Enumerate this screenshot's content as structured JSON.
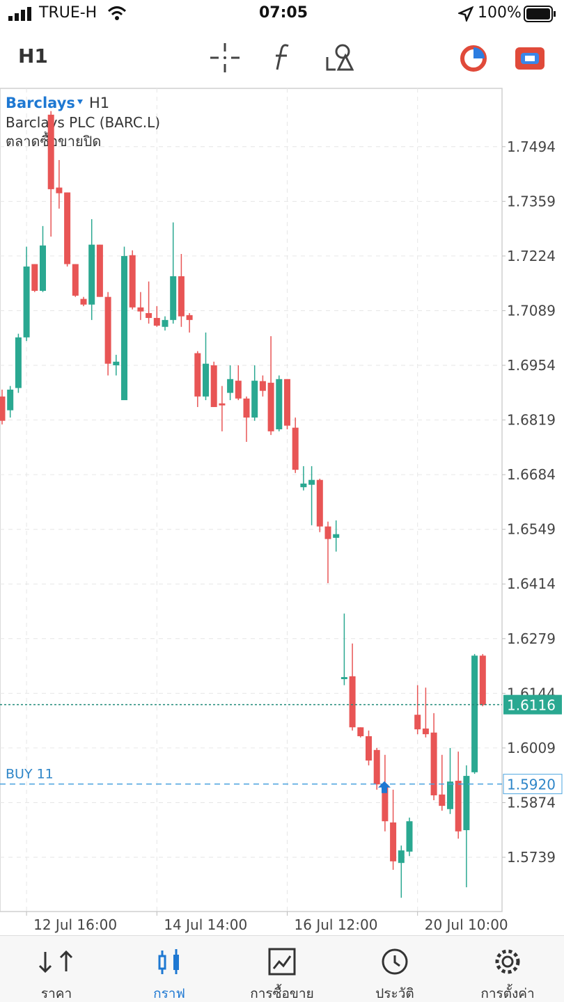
{
  "status_bar": {
    "carrier": "TRUE-H",
    "time": "07:05",
    "battery": "100%"
  },
  "toolbar": {
    "timeframe": "H1"
  },
  "chart_data": {
    "type": "candlestick",
    "symbol": "Barclays",
    "timeframe": "H1",
    "description": "Barclays PLC (BARC.L)",
    "market_status": "ตลาดซื้อขายปิด",
    "categories": [
      null,
      null,
      null,
      "12 Jul 16:00",
      null,
      null,
      null,
      null,
      null,
      null,
      null,
      null,
      null,
      null,
      null,
      null,
      null,
      null,
      null,
      "14 Jul 14:00",
      null,
      null,
      null,
      null,
      null,
      null,
      null,
      null,
      null,
      null,
      null,
      null,
      null,
      null,
      null,
      "16 Jul 12:00",
      null,
      null,
      null,
      null,
      null,
      null,
      null,
      null,
      null,
      null,
      null,
      null,
      null,
      null,
      null,
      "20 Jul 10:00",
      null,
      null,
      null,
      null,
      null,
      null,
      null,
      null
    ],
    "open": [
      1.6877,
      1.6843,
      1.6898,
      1.7023,
      1.7204,
      1.7138,
      1.7573,
      1.7393,
      1.7381,
      1.7204,
      1.7118,
      1.7104,
      1.7252,
      1.7123,
      1.6954,
      1.6868,
      1.7226,
      1.7097,
      1.7083,
      1.7071,
      1.7049,
      1.7066,
      1.7174,
      1.7078,
      1.6984,
      1.6877,
      1.6954,
      1.686,
      1.6886,
      1.6916,
      1.6872,
      1.6825,
      1.6915,
      1.6911,
      1.6796,
      1.692,
      1.68,
      1.6653,
      1.6659,
      1.6671,
      1.6556,
      1.6528,
      1.6179,
      1.6186,
      1.606,
      1.6038,
      1.6004,
      1.5919,
      1.5825,
      1.5725,
      1.5753,
      1.6091,
      1.6057,
      1.6047,
      1.5894,
      1.5858,
      1.5928,
      1.5806,
      1.5949,
      1.6237
    ],
    "high": [
      1.6894,
      1.6903,
      1.7032,
      1.7247,
      1.7204,
      1.7298,
      1.7582,
      1.7461,
      1.7381,
      1.7204,
      1.7123,
      1.7315,
      1.7252,
      1.7135,
      1.698,
      1.7247,
      1.7238,
      1.7135,
      1.7161,
      1.71,
      1.7075,
      1.7307,
      1.7229,
      1.7083,
      1.6989,
      1.7035,
      1.6963,
      1.6903,
      1.6954,
      1.6954,
      1.6877,
      1.6954,
      1.6929,
      1.7026,
      1.6929,
      1.692,
      1.6825,
      1.6705,
      1.6705,
      1.6674,
      1.6568,
      1.6571,
      1.6341,
      1.6267,
      1.606,
      1.6052,
      1.6009,
      1.5992,
      1.5906,
      1.5768,
      1.5837,
      1.6164,
      1.6158,
      1.6095,
      1.5992,
      1.6009,
      1.6,
      1.5966,
      1.6241,
      1.6241
    ],
    "low": [
      1.6808,
      1.6825,
      1.6886,
      1.7014,
      1.7135,
      1.7135,
      1.7272,
      1.7341,
      1.7198,
      1.7123,
      1.71,
      1.7066,
      1.7123,
      1.6929,
      1.6929,
      1.6868,
      1.7092,
      1.7066,
      1.7057,
      1.7049,
      1.704,
      1.7057,
      1.7049,
      1.7035,
      1.6851,
      1.6868,
      1.6851,
      1.6791,
      1.6868,
      1.6868,
      1.6765,
      1.6817,
      1.6877,
      1.6782,
      1.6791,
      1.6796,
      1.6688,
      1.6645,
      1.6559,
      1.6542,
      1.6416,
      1.6494,
      1.6164,
      1.6052,
      1.6035,
      1.5966,
      1.5906,
      1.5803,
      1.5708,
      1.5639,
      1.5742,
      1.6043,
      1.6035,
      1.588,
      1.5854,
      1.5846,
      1.5785,
      1.5665,
      1.5945,
      1.6112
    ],
    "close": [
      1.6817,
      1.6894,
      1.7023,
      1.7198,
      1.7138,
      1.725,
      1.7389,
      1.7379,
      1.7204,
      1.7126,
      1.7104,
      1.7252,
      1.7123,
      1.6958,
      1.6963,
      1.7224,
      1.7097,
      1.7087,
      1.7071,
      1.7052,
      1.7066,
      1.7174,
      1.7075,
      1.7066,
      1.6877,
      1.6958,
      1.6851,
      1.6855,
      1.692,
      1.6872,
      1.6825,
      1.6916,
      1.6891,
      1.6791,
      1.692,
      1.6805,
      1.6696,
      1.6662,
      1.6671,
      1.6556,
      1.6525,
      1.6537,
      1.6184,
      1.606,
      1.6038,
      1.5978,
      1.5919,
      1.5828,
      1.5729,
      1.5756,
      1.5828,
      1.6055,
      1.6043,
      1.5892,
      1.5866,
      1.5926,
      1.5803,
      1.594,
      1.6237,
      1.6115
    ],
    "up_color": "#2aa891",
    "down_color": "#e85555",
    "ylim": [
      1.5605,
      1.7638
    ],
    "yticks": [
      1.7494,
      1.7359,
      1.7224,
      1.7089,
      1.6954,
      1.6819,
      1.6684,
      1.6549,
      1.6414,
      1.6279,
      1.6144,
      1.6009,
      1.5874,
      1.5739
    ],
    "grid": true,
    "current_price": 1.6116,
    "positions": [
      {
        "label": "BUY 11",
        "price": {
          "value": 1.592,
          "label": "1.5920"
        }
      }
    ]
  },
  "bottom_nav": {
    "active": 1,
    "tabs": [
      "ราคา",
      "กราฟ",
      "การซื้อขาย",
      "ประวัติ",
      "การตั้งค่า"
    ]
  }
}
